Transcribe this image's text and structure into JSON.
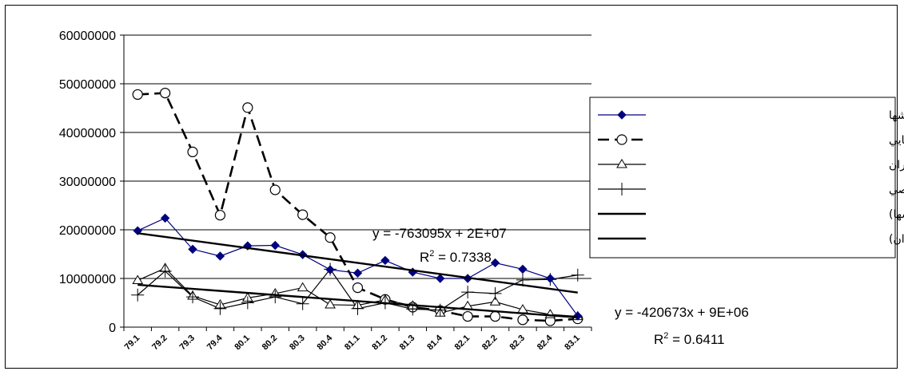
{
  "chart_data": {
    "type": "line",
    "ylim": [
      0,
      60000000
    ],
    "yticks": [
      "0",
      "10000000",
      "20000000",
      "30000000",
      "40000000",
      "50000000",
      "60000000"
    ],
    "categories": [
      "79.1",
      "79.2",
      "79.3",
      "79.4",
      "80.1",
      "80.2",
      "80.3",
      "80.4",
      "81.1",
      "81.2",
      "81.3",
      "81.4",
      "82.1",
      "82.2",
      "82.3",
      "82.4",
      "83.1"
    ],
    "grid": true,
    "legend_position": "right",
    "series": [
      {
        "name": "شير كشها",
        "color": "#000080",
        "marker": "diamond",
        "dash": "solid",
        "values": [
          19800000,
          22400000,
          16000000,
          14600000,
          16700000,
          16800000,
          14900000,
          11800000,
          11100000,
          13700000,
          11300000,
          10000000,
          10000000,
          13200000,
          11900000,
          10000000,
          2300000
        ]
      },
      {
        "name": "مراكز تعاون روستايي",
        "color": "#000000",
        "marker": "circle",
        "dash": "dashed",
        "values": [
          47800000,
          48100000,
          36000000,
          23000000,
          45100000,
          28200000,
          23100000,
          18400000,
          8100000,
          5700000,
          4100000,
          3400000,
          2200000,
          2200000,
          1500000,
          1300000,
          1700000
        ]
      },
      {
        "name": "مراكز تعاوني دامداران",
        "color": "#000000",
        "marker": "triangle",
        "dash": "solid",
        "values": [
          9600000,
          12100000,
          6400000,
          4600000,
          6000000,
          6900000,
          8100000,
          4600000,
          4500000,
          5600000,
          4400000,
          2900000,
          4300000,
          5200000,
          3600000,
          2600000,
          2200000
        ]
      },
      {
        "name": "مراكز شخصي",
        "color": "#000000",
        "marker": "plus",
        "dash": "solid",
        "values": [
          6600000,
          11500000,
          6200000,
          3800000,
          5000000,
          6200000,
          4800000,
          11900000,
          3800000,
          5000000,
          3700000,
          3500000,
          7200000,
          6900000,
          9700000,
          9800000,
          10700000
        ]
      }
    ],
    "trendlines": [
      {
        "legend": "Linear (شير كشها)",
        "from": 19300000,
        "to": 7100000
      },
      {
        "legend": "Linear (مراكز تعاوني دامداران)",
        "from": 8700000,
        "to": 2000000
      }
    ],
    "annotations": {
      "eq1": "y = -763095x + 2E+07",
      "r2_1_prefix": "R",
      "r2_1_sup": "2",
      "r2_1_value": " = 0.7338",
      "eq2": "y = -420673x + 9E+06",
      "r2_2_prefix": "R",
      "r2_2_sup": "2",
      "r2_2_value": " = 0.6411"
    }
  }
}
